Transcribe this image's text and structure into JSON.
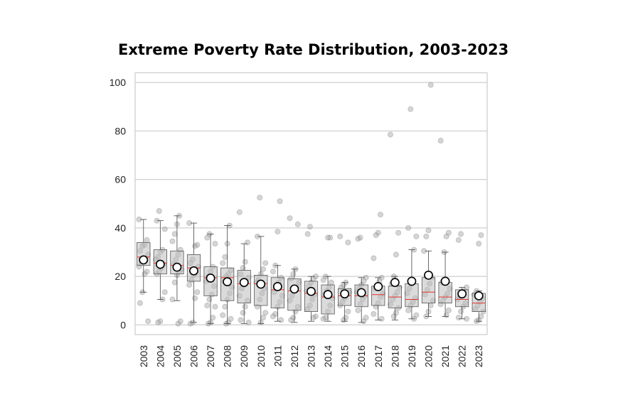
{
  "chart_data": {
    "type": "box",
    "title": "Extreme Poverty Rate Distribution, 2003-2023",
    "xlabel": "",
    "ylabel": "",
    "ylim": [
      -4,
      104
    ],
    "yticks": [
      0,
      20,
      40,
      60,
      80,
      100
    ],
    "grid": "horizontal",
    "categories": [
      "2003",
      "2004",
      "2005",
      "2006",
      "2007",
      "2008",
      "2009",
      "2010",
      "2011",
      "2012",
      "2013",
      "2014",
      "2015",
      "2016",
      "2017",
      "2018",
      "2019",
      "2020",
      "2021",
      "2022",
      "2023"
    ],
    "boxes": [
      {
        "q1": 24.5,
        "median": 28.0,
        "q3": 34.0,
        "whisker_low": 13.5,
        "whisker_high": 43.5,
        "mean": 26.8
      },
      {
        "q1": 21.0,
        "median": 25.5,
        "q3": 31.0,
        "whisker_low": 10.5,
        "whisker_high": 43.0,
        "mean": 25.0
      },
      {
        "q1": 21.0,
        "median": 24.5,
        "q3": 30.5,
        "whisker_low": 10.0,
        "whisker_high": 45.0,
        "mean": 23.8
      },
      {
        "q1": 18.0,
        "median": 23.5,
        "q3": 29.0,
        "whisker_low": 1.0,
        "whisker_high": 42.0,
        "mean": 22.3
      },
      {
        "q1": 12.0,
        "median": 19.5,
        "q3": 24.0,
        "whisker_low": 0.5,
        "whisker_high": 37.5,
        "mean": 19.3
      },
      {
        "q1": 10.0,
        "median": 19.5,
        "q3": 23.5,
        "whisker_low": 0.5,
        "whisker_high": 41.0,
        "mean": 17.8
      },
      {
        "q1": 9.0,
        "median": 17.0,
        "q3": 22.5,
        "whisker_low": 0.5,
        "whisker_high": 33.5,
        "mean": 17.5
      },
      {
        "q1": 8.0,
        "median": 17.0,
        "q3": 20.5,
        "whisker_low": 0.5,
        "whisker_high": 36.5,
        "mean": 16.8
      },
      {
        "q1": 7.0,
        "median": 14.5,
        "q3": 19.5,
        "whisker_low": 1.5,
        "whisker_high": 24.5,
        "mean": 15.8
      },
      {
        "q1": 6.0,
        "median": 14.0,
        "q3": 19.0,
        "whisker_low": 1.0,
        "whisker_high": 23.0,
        "mean": 14.8
      },
      {
        "q1": 5.5,
        "median": 13.0,
        "q3": 18.0,
        "whisker_low": 1.5,
        "whisker_high": 20.0,
        "mean": 13.8
      },
      {
        "q1": 4.5,
        "median": 11.5,
        "q3": 16.5,
        "whisker_low": 1.5,
        "whisker_high": 20.0,
        "mean": 12.5
      },
      {
        "q1": 8.0,
        "median": 12.0,
        "q3": 15.0,
        "whisker_low": 1.5,
        "whisker_high": 17.5,
        "mean": 12.8
      },
      {
        "q1": 7.5,
        "median": 12.0,
        "q3": 16.5,
        "whisker_low": 1.0,
        "whisker_high": 19.5,
        "mean": 13.3
      },
      {
        "q1": 8.0,
        "median": 12.5,
        "q3": 16.0,
        "whisker_low": 2.0,
        "whisker_high": 19.5,
        "mean": 15.8
      },
      {
        "q1": 7.0,
        "median": 11.5,
        "q3": 16.0,
        "whisker_low": 2.0,
        "whisker_high": 20.0,
        "mean": 17.5
      },
      {
        "q1": 7.5,
        "median": 10.5,
        "q3": 17.0,
        "whisker_low": 2.5,
        "whisker_high": 31.0,
        "mean": 18.0
      },
      {
        "q1": 9.0,
        "median": 13.5,
        "q3": 19.5,
        "whisker_low": 3.5,
        "whisker_high": 30.5,
        "mean": 20.5
      },
      {
        "q1": 9.0,
        "median": 11.5,
        "q3": 17.5,
        "whisker_low": 3.5,
        "whisker_high": 30.0,
        "mean": 18.0
      },
      {
        "q1": 7.5,
        "median": 10.5,
        "q3": 14.5,
        "whisker_low": 2.5,
        "whisker_high": 15.5,
        "mean": 12.8
      },
      {
        "q1": 5.5,
        "median": 9.0,
        "q3": 13.0,
        "whisker_low": 1.5,
        "whisker_high": 14.0,
        "mean": 12.0
      }
    ],
    "points": [
      [
        43.5,
        35.0,
        33.0,
        32.5,
        30.5,
        29.0,
        27.5,
        26.5,
        25.5,
        24.0,
        22.0,
        21.0,
        13.5,
        9.0,
        1.5
      ],
      [
        47.0,
        43.0,
        39.5,
        31.0,
        30.0,
        28.0,
        27.0,
        25.0,
        23.5,
        22.0,
        21.0,
        13.5,
        10.5,
        1.5,
        1.0
      ],
      [
        45.0,
        41.5,
        37.5,
        34.5,
        31.0,
        29.0,
        27.0,
        25.0,
        23.0,
        22.0,
        20.5,
        17.5,
        10.5,
        1.5,
        0.5
      ],
      [
        42.0,
        33.0,
        32.5,
        27.0,
        25.5,
        24.0,
        21.5,
        20.5,
        18.5,
        16.5,
        13.5,
        11.0,
        1.0,
        0.5
      ],
      [
        37.5,
        36.0,
        33.5,
        24.0,
        22.0,
        20.0,
        18.0,
        16.0,
        12.5,
        10.5,
        8.0,
        7.5,
        3.0,
        1.0,
        0.5
      ],
      [
        41.0,
        33.5,
        28.0,
        25.5,
        22.5,
        21.0,
        20.0,
        18.0,
        15.5,
        13.0,
        10.5,
        7.5,
        4.0,
        2.5,
        1.0,
        0.5
      ],
      [
        46.5,
        34.0,
        26.0,
        23.5,
        21.0,
        19.5,
        18.0,
        16.5,
        15.0,
        12.0,
        10.0,
        7.5,
        5.0,
        2.0,
        1.0
      ],
      [
        52.5,
        36.5,
        25.5,
        23.0,
        21.0,
        18.5,
        17.5,
        15.0,
        13.0,
        10.5,
        7.5,
        5.0,
        3.0,
        1.0
      ],
      [
        51.0,
        38.5,
        24.5,
        22.0,
        19.5,
        17.5,
        15.0,
        13.5,
        12.0,
        9.5,
        7.5,
        4.5,
        3.5,
        2.0
      ],
      [
        44.0,
        41.5,
        23.0,
        21.0,
        19.0,
        17.5,
        15.5,
        14.0,
        12.0,
        10.0,
        7.5,
        5.5,
        3.0,
        2.0
      ],
      [
        40.5,
        37.5,
        20.0,
        19.0,
        17.5,
        16.0,
        14.0,
        12.5,
        10.5,
        8.0,
        6.5,
        3.5,
        3.0
      ],
      [
        36.0,
        36.0,
        20.0,
        18.5,
        17.5,
        15.5,
        14.0,
        12.5,
        11.0,
        8.0,
        5.5,
        3.0,
        2.5
      ],
      [
        36.5,
        34.0,
        17.5,
        16.5,
        15.5,
        13.5,
        12.5,
        11.0,
        9.5,
        8.0,
        5.5,
        3.0,
        2.0
      ],
      [
        36.0,
        35.5,
        19.5,
        18.0,
        16.5,
        15.0,
        13.5,
        12.0,
        10.5,
        8.5,
        6.0,
        3.0,
        1.5
      ],
      [
        45.5,
        38.0,
        37.0,
        27.5,
        19.5,
        18.0,
        16.0,
        15.0,
        13.0,
        11.5,
        9.0,
        7.5,
        4.5,
        2.5
      ],
      [
        78.5,
        38.0,
        29.0,
        20.0,
        17.0,
        15.5,
        13.5,
        12.0,
        10.5,
        8.5,
        7.0,
        5.0,
        3.5
      ],
      [
        89.0,
        40.0,
        36.5,
        31.0,
        17.0,
        15.0,
        13.0,
        11.0,
        9.5,
        8.0,
        6.0,
        4.0,
        2.5
      ],
      [
        99.0,
        39.0,
        36.5,
        30.5,
        19.5,
        17.0,
        14.5,
        12.5,
        10.0,
        8.0,
        5.5,
        3.5
      ],
      [
        76.0,
        38.0,
        36.5,
        30.0,
        17.5,
        15.0,
        13.0,
        11.5,
        10.0,
        8.5,
        6.0,
        4.0
      ],
      [
        37.5,
        35.0,
        15.5,
        14.0,
        12.5,
        11.5,
        10.5,
        9.0,
        7.5,
        5.5,
        3.0,
        2.5
      ],
      [
        37.0,
        33.5,
        14.0,
        12.5,
        11.0,
        9.5,
        8.0,
        6.5,
        5.5,
        3.5,
        2.0,
        1.5
      ]
    ]
  }
}
